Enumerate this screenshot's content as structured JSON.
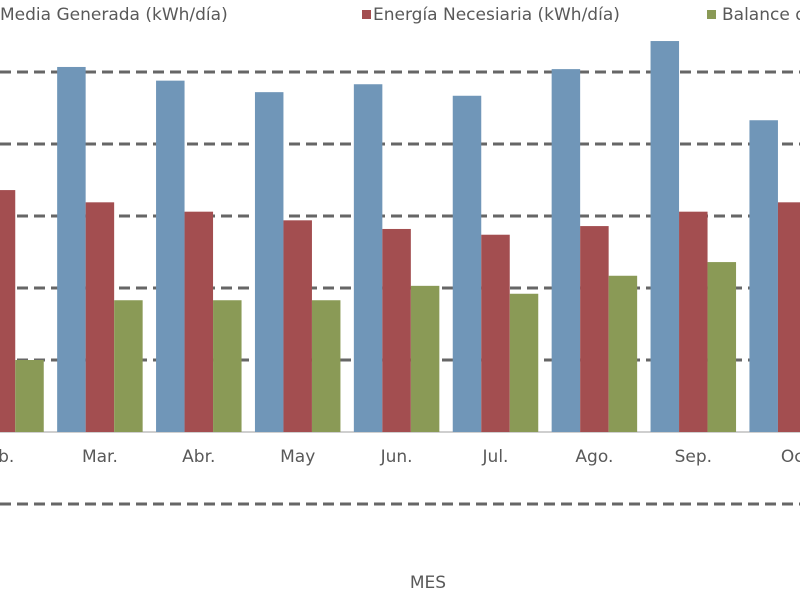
{
  "chart_data": {
    "type": "bar",
    "x_label": "MES",
    "categories": [
      "eb.",
      "Mar.",
      "Abr.",
      "May",
      "Jun.",
      "Jul.",
      "Ago.",
      "Sep.",
      "Oc"
    ],
    "series": [
      {
        "name": "Media Generada (kWh/día)",
        "color": "#7096b8",
        "values": [
          null,
          5.07,
          4.88,
          4.72,
          4.83,
          4.67,
          5.04,
          5.43,
          4.33
        ]
      },
      {
        "name": "Energía Necesiaria (kWh/día)",
        "color": "#a34e50",
        "values": [
          3.36,
          3.19,
          3.06,
          2.94,
          2.82,
          2.74,
          2.86,
          3.06,
          3.19
        ]
      },
      {
        "name": "Balance d",
        "color": "#8a9a56",
        "values": [
          1.0,
          1.83,
          1.83,
          1.83,
          2.03,
          1.92,
          2.17,
          2.36,
          null
        ]
      }
    ],
    "ylim": [
      -1.5,
      5.5
    ],
    "gridlines": [
      -1,
      1,
      2,
      3,
      4,
      5
    ],
    "grid": true
  }
}
